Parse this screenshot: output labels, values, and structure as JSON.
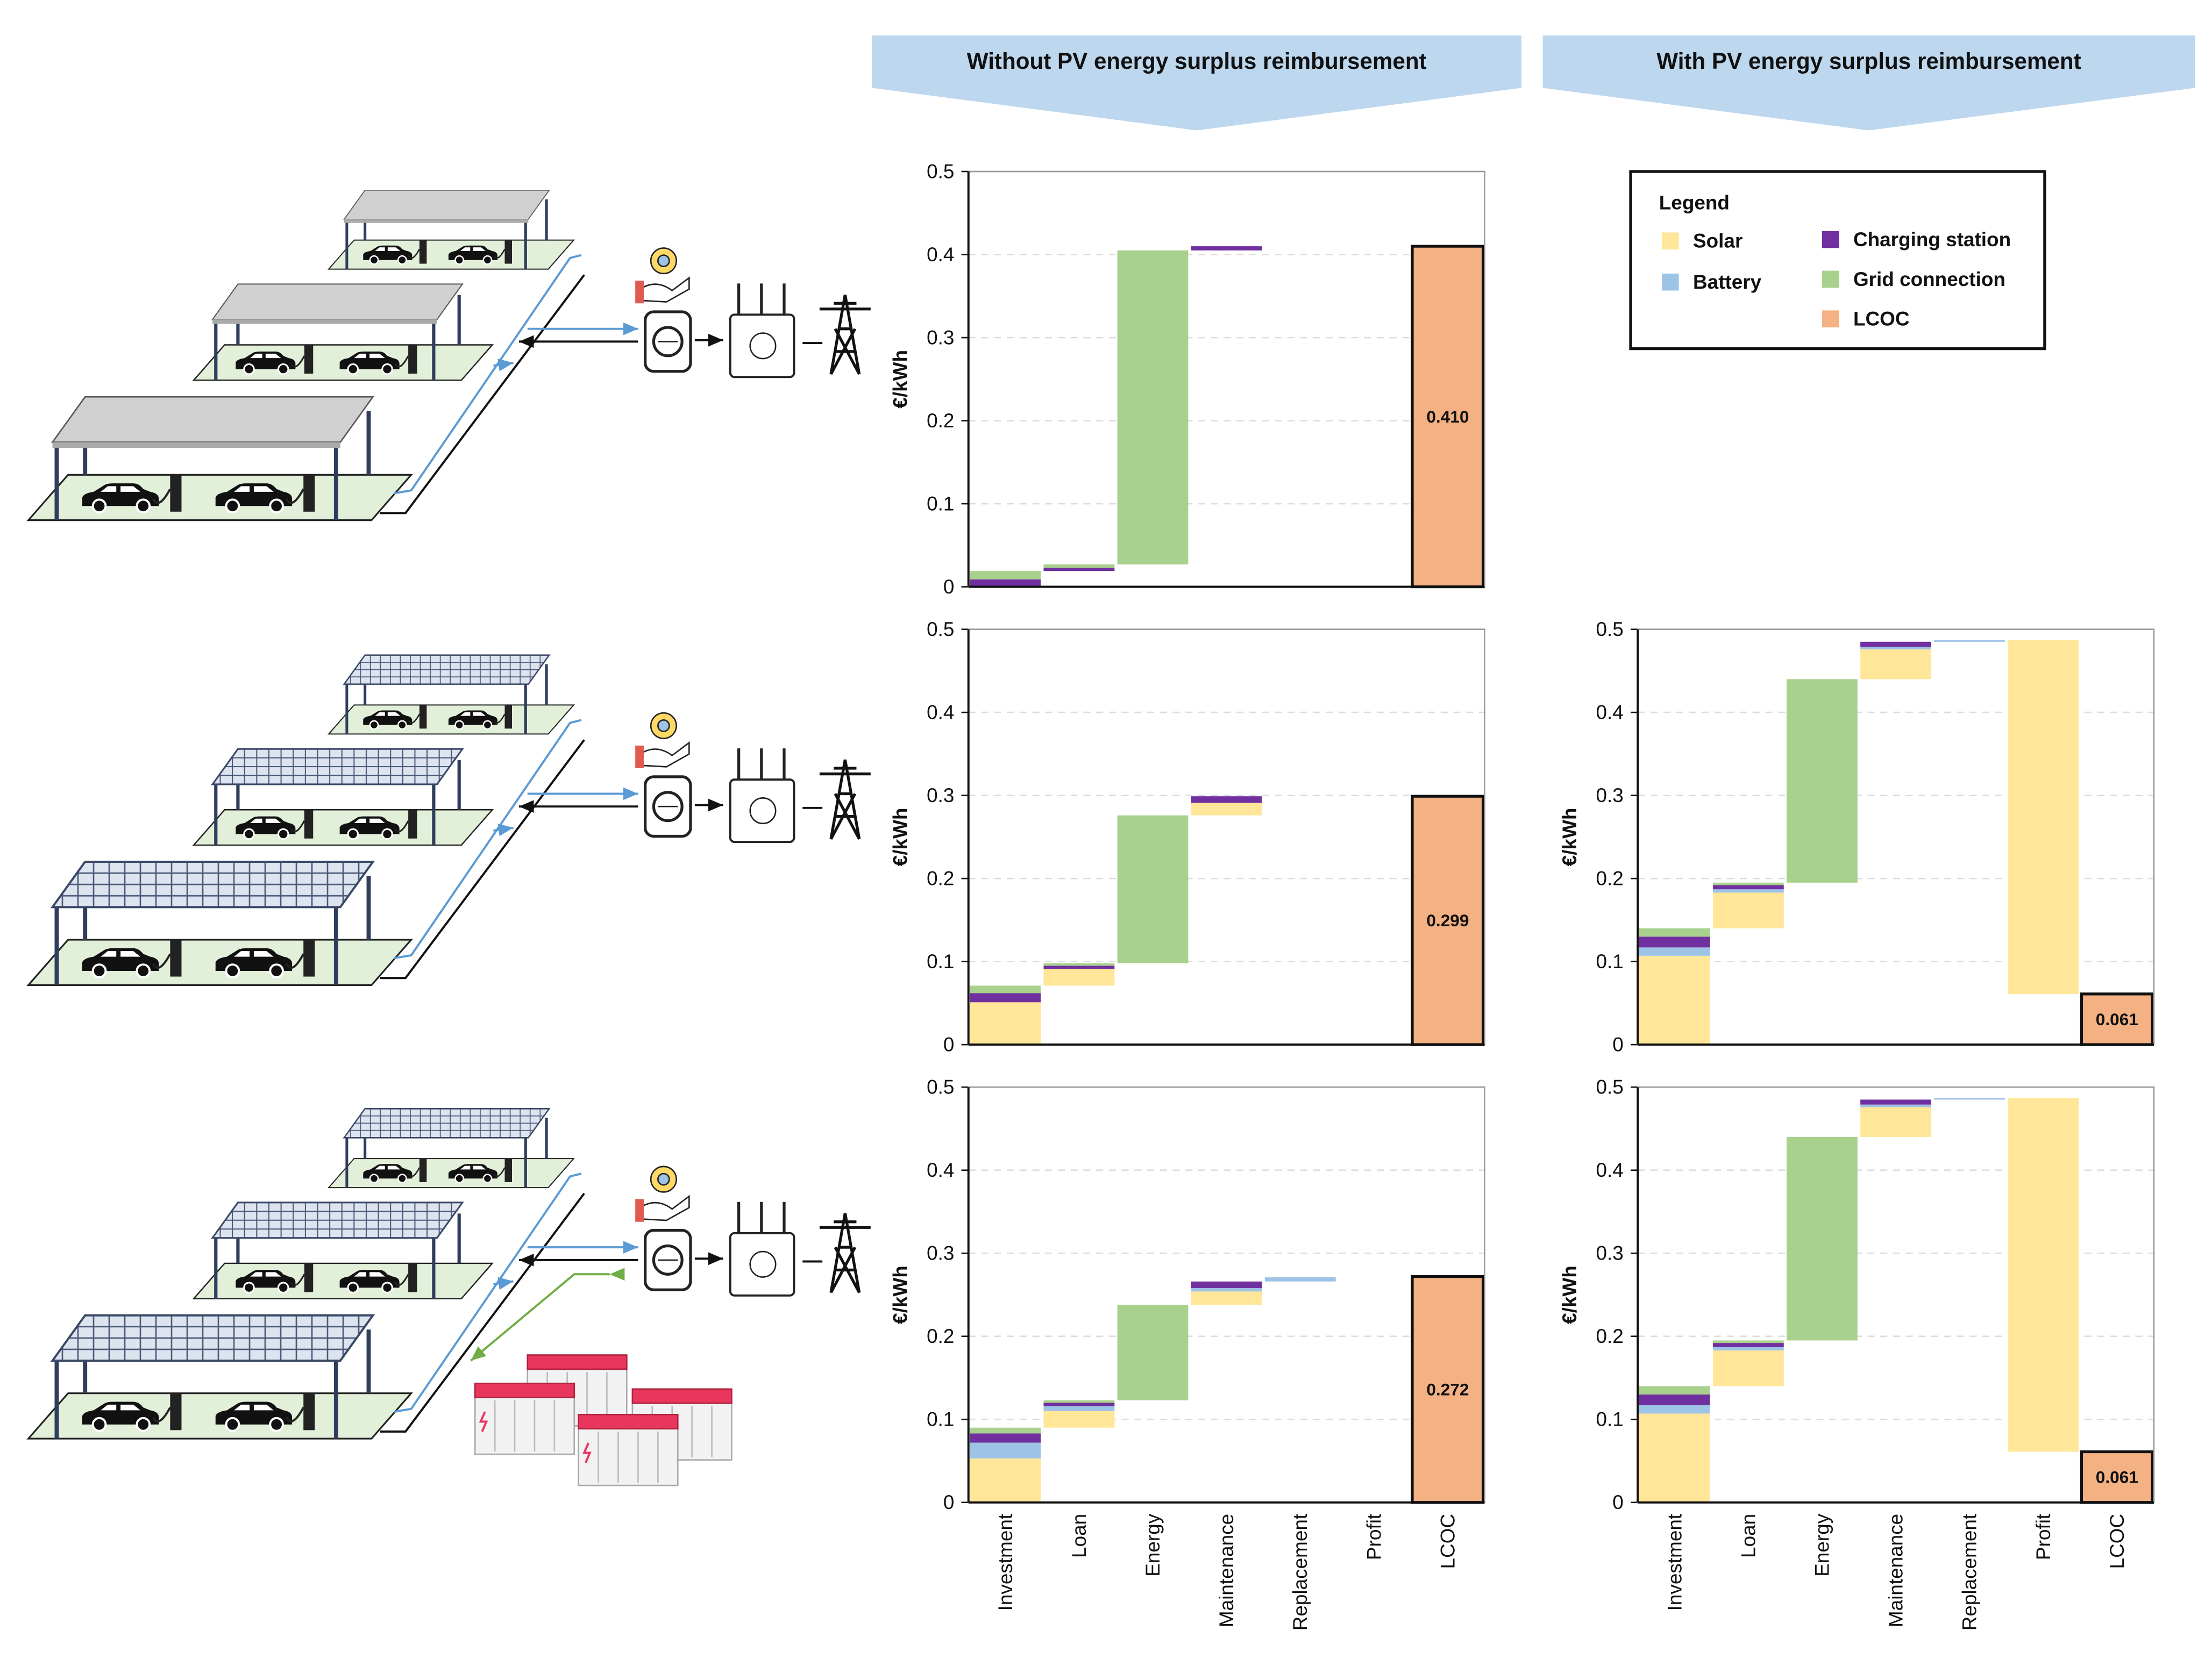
{
  "headers": [
    "Without PV energy surplus reimbursement",
    "With PV energy surplus reimbursement"
  ],
  "legend_title": "Legend",
  "chart_data": [
    {
      "type": "waterfall",
      "ylabel": "€/kWh",
      "categories": [
        null,
        null,
        null,
        null,
        null,
        null,
        null
      ],
      "ylim": [
        0,
        0.5
      ],
      "yticks": [
        0,
        0.1,
        0.2,
        0.3,
        0.4,
        0.5
      ],
      "grid": true,
      "series": [
        {
          "name": "Charging station",
          "color": "#7030a0",
          "values": [
            0.009,
            0.004,
            null,
            0.005,
            null,
            null,
            null
          ]
        },
        {
          "name": "Grid connection",
          "color": "#a9d18e",
          "values": [
            0.01,
            0.004,
            0.378,
            null,
            null,
            null,
            null
          ]
        },
        {
          "name": "LCOC",
          "color": "#f4b183",
          "values": [
            null,
            null,
            null,
            null,
            null,
            null,
            0.41
          ],
          "value_labels": [
            null,
            null,
            null,
            null,
            null,
            null,
            "0.410"
          ]
        }
      ]
    },
    {
      "type": "waterfall",
      "ylabel": "€/kWh",
      "categories": [
        null,
        null,
        null,
        null,
        null,
        null,
        null
      ],
      "ylim": [
        0,
        0.5
      ],
      "yticks": [
        0,
        0.1,
        0.2,
        0.3,
        0.4,
        0.5
      ],
      "grid": true,
      "series": [
        {
          "name": "Solar",
          "color": "#ffe699",
          "values": [
            0.051,
            0.02,
            null,
            0.015,
            null,
            null,
            null
          ]
        },
        {
          "name": "Charging station",
          "color": "#7030a0",
          "values": [
            0.011,
            0.004,
            null,
            0.008,
            null,
            null,
            null
          ]
        },
        {
          "name": "Grid connection",
          "color": "#a9d18e",
          "values": [
            0.009,
            0.003,
            0.178,
            null,
            null,
            null,
            null
          ]
        },
        {
          "name": "LCOC",
          "color": "#f4b183",
          "values": [
            null,
            null,
            null,
            null,
            null,
            null,
            0.299
          ]
        }
      ]
    },
    {
      "type": "waterfall",
      "ylabel": "€/kWh",
      "categories": [
        "Investment",
        "Loan",
        "Energy",
        "Maintenance",
        "Replacement",
        "Profit",
        "LCOC"
      ],
      "ylim": [
        0,
        0.5
      ],
      "yticks": [
        0,
        0.1,
        0.2,
        0.3,
        0.4,
        0.5
      ],
      "grid": true,
      "series": [
        {
          "name": "Solar",
          "color": "#ffe699",
          "values": [
            0.053,
            0.02,
            null,
            0.016,
            null,
            null,
            null
          ]
        },
        {
          "name": "Battery",
          "color": "#9dc3e6",
          "values": [
            0.019,
            0.006,
            null,
            0.004,
            0.005,
            null,
            null
          ]
        },
        {
          "name": "Charging station",
          "color": "#7030a0",
          "values": [
            0.011,
            0.004,
            null,
            0.008,
            null,
            null,
            null
          ]
        },
        {
          "name": "Grid connection",
          "color": "#a9d18e",
          "values": [
            0.007,
            0.003,
            0.115,
            null,
            null,
            null,
            null
          ]
        },
        {
          "name": "LCOC",
          "color": "#f4b183",
          "values": [
            null,
            null,
            null,
            null,
            null,
            null,
            0.272
          ]
        }
      ]
    },
    {
      "type": "waterfall",
      "ylabel": "€/kWh",
      "categories": [
        null,
        null,
        null,
        null,
        null,
        null,
        null
      ],
      "ylim": [
        0,
        0.5
      ],
      "yticks": [
        0,
        0.1,
        0.2,
        0.3,
        0.4,
        0.5
      ],
      "grid": true,
      "series": [
        {
          "name": "Solar",
          "color": "#ffe699",
          "values": [
            0.107,
            0.043,
            null,
            0.036,
            null,
            -0.426,
            null
          ]
        },
        {
          "name": "Battery",
          "color": "#9dc3e6",
          "values": [
            0.01,
            0.004,
            null,
            0.003,
            0.002,
            null,
            null
          ]
        },
        {
          "name": "Charging station",
          "color": "#7030a0",
          "values": [
            0.013,
            0.005,
            null,
            0.006,
            null,
            null,
            null
          ]
        },
        {
          "name": "Grid connection",
          "color": "#a9d18e",
          "values": [
            0.01,
            0.003,
            0.245,
            null,
            null,
            null,
            null
          ]
        },
        {
          "name": "LCOC",
          "color": "#f4b183",
          "values": [
            null,
            null,
            null,
            null,
            null,
            null,
            0.061
          ]
        }
      ]
    },
    {
      "type": "waterfall",
      "ylabel": "€/kWh",
      "categories": [
        "Investment",
        "Loan",
        "Energy",
        "Maintenance",
        "Replacement",
        "Profit",
        "LCOC"
      ],
      "ylim": [
        0,
        0.5
      ],
      "yticks": [
        0,
        0.1,
        0.2,
        0.3,
        0.4,
        0.5
      ],
      "grid": true,
      "series": [
        {
          "name": "Solar",
          "color": "#ffe699",
          "values": [
            0.107,
            0.043,
            null,
            0.036,
            null,
            -0.426,
            null
          ]
        },
        {
          "name": "Battery",
          "color": "#9dc3e6",
          "values": [
            0.01,
            0.004,
            null,
            0.003,
            0.002,
            null,
            null
          ]
        },
        {
          "name": "Charging station",
          "color": "#7030a0",
          "values": [
            0.013,
            0.005,
            null,
            0.006,
            null,
            null,
            null
          ]
        },
        {
          "name": "Grid connection",
          "color": "#a9d18e",
          "values": [
            0.01,
            0.003,
            0.245,
            null,
            null,
            null,
            null
          ]
        },
        {
          "name": "LCOC",
          "color": "#f4b183",
          "values": [
            null,
            null,
            null,
            null,
            null,
            null,
            0.061
          ]
        }
      ]
    }
  ]
}
